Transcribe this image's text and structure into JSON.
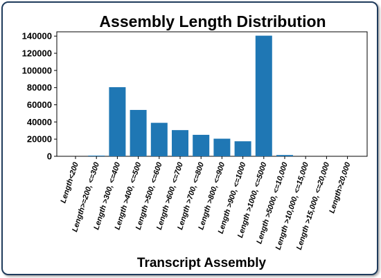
{
  "chart_data": {
    "type": "bar",
    "title": "Assembly Length Distribution",
    "xlabel": "Transcript Assembly",
    "ylabel": "",
    "ylim": [
      0,
      145000
    ],
    "yticks": [
      0,
      20000,
      40000,
      60000,
      80000,
      100000,
      120000,
      140000
    ],
    "categories": [
      "Length<200",
      "Length>=200, <=300",
      "Length >300, <=400",
      "Length >400, <=500",
      "Length >500, <=600",
      "Length >600, <=700",
      "Length >700, <=800",
      "Length >800, <=900",
      "Length >900, <=1000",
      "Length >1000, <=5000",
      "Length >5000, <=10,000",
      "Length >10,000, <=15,000",
      "Length >15,000, <=20,000",
      "Length>20,000"
    ],
    "values": [
      0,
      800,
      80500,
      54000,
      39000,
      30500,
      25000,
      20500,
      17500,
      140500,
      1500,
      0,
      0,
      0
    ],
    "bar_color": "#1f77b4",
    "grid": false,
    "legend": "none"
  }
}
